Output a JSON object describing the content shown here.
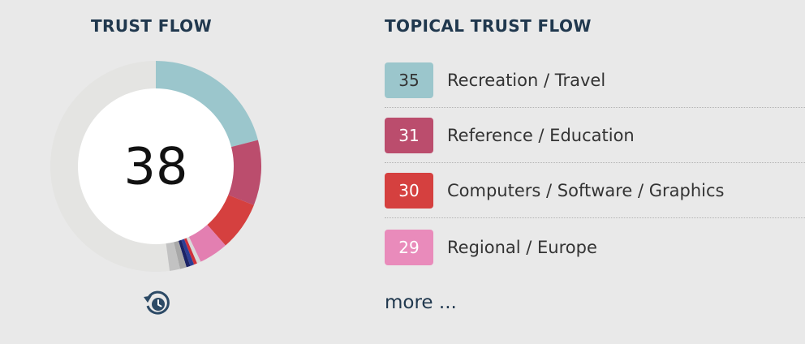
{
  "trust_flow": {
    "title": "TRUST FLOW",
    "value": "38",
    "ring_track_color": "#e4e4e2",
    "history_icon": "history-clock-icon",
    "segments": [
      {
        "fraction": 0.21,
        "color": "#9bc6cc"
      },
      {
        "fraction": 0.1,
        "color": "#bb4d6d"
      },
      {
        "fraction": 0.075,
        "color": "#d5403f"
      },
      {
        "fraction": 0.045,
        "color": "#e37fb1"
      },
      {
        "fraction": 0.006,
        "color": "#d9d9d9"
      },
      {
        "fraction": 0.005,
        "color": "#d0303a"
      },
      {
        "fraction": 0.006,
        "color": "#2c3e95"
      },
      {
        "fraction": 0.006,
        "color": "#1b2366"
      },
      {
        "fraction": 0.01,
        "color": "#a8a8a8"
      },
      {
        "fraction": 0.016,
        "color": "#c2c2c2"
      }
    ]
  },
  "topical": {
    "title": "TOPICAL TRUST FLOW",
    "items": [
      {
        "value": "35",
        "label": "Recreation / Travel",
        "bg": "#9bc6cc",
        "fg": "#333333"
      },
      {
        "value": "31",
        "label": "Reference / Education",
        "bg": "#bb4d6d",
        "fg": "#ffffff"
      },
      {
        "value": "30",
        "label": "Computers / Software / Graphics",
        "bg": "#d5403f",
        "fg": "#ffffff"
      },
      {
        "value": "29",
        "label": "Regional / Europe",
        "bg": "#e98bbb",
        "fg": "#ffffff"
      }
    ],
    "more_label": "more ..."
  }
}
